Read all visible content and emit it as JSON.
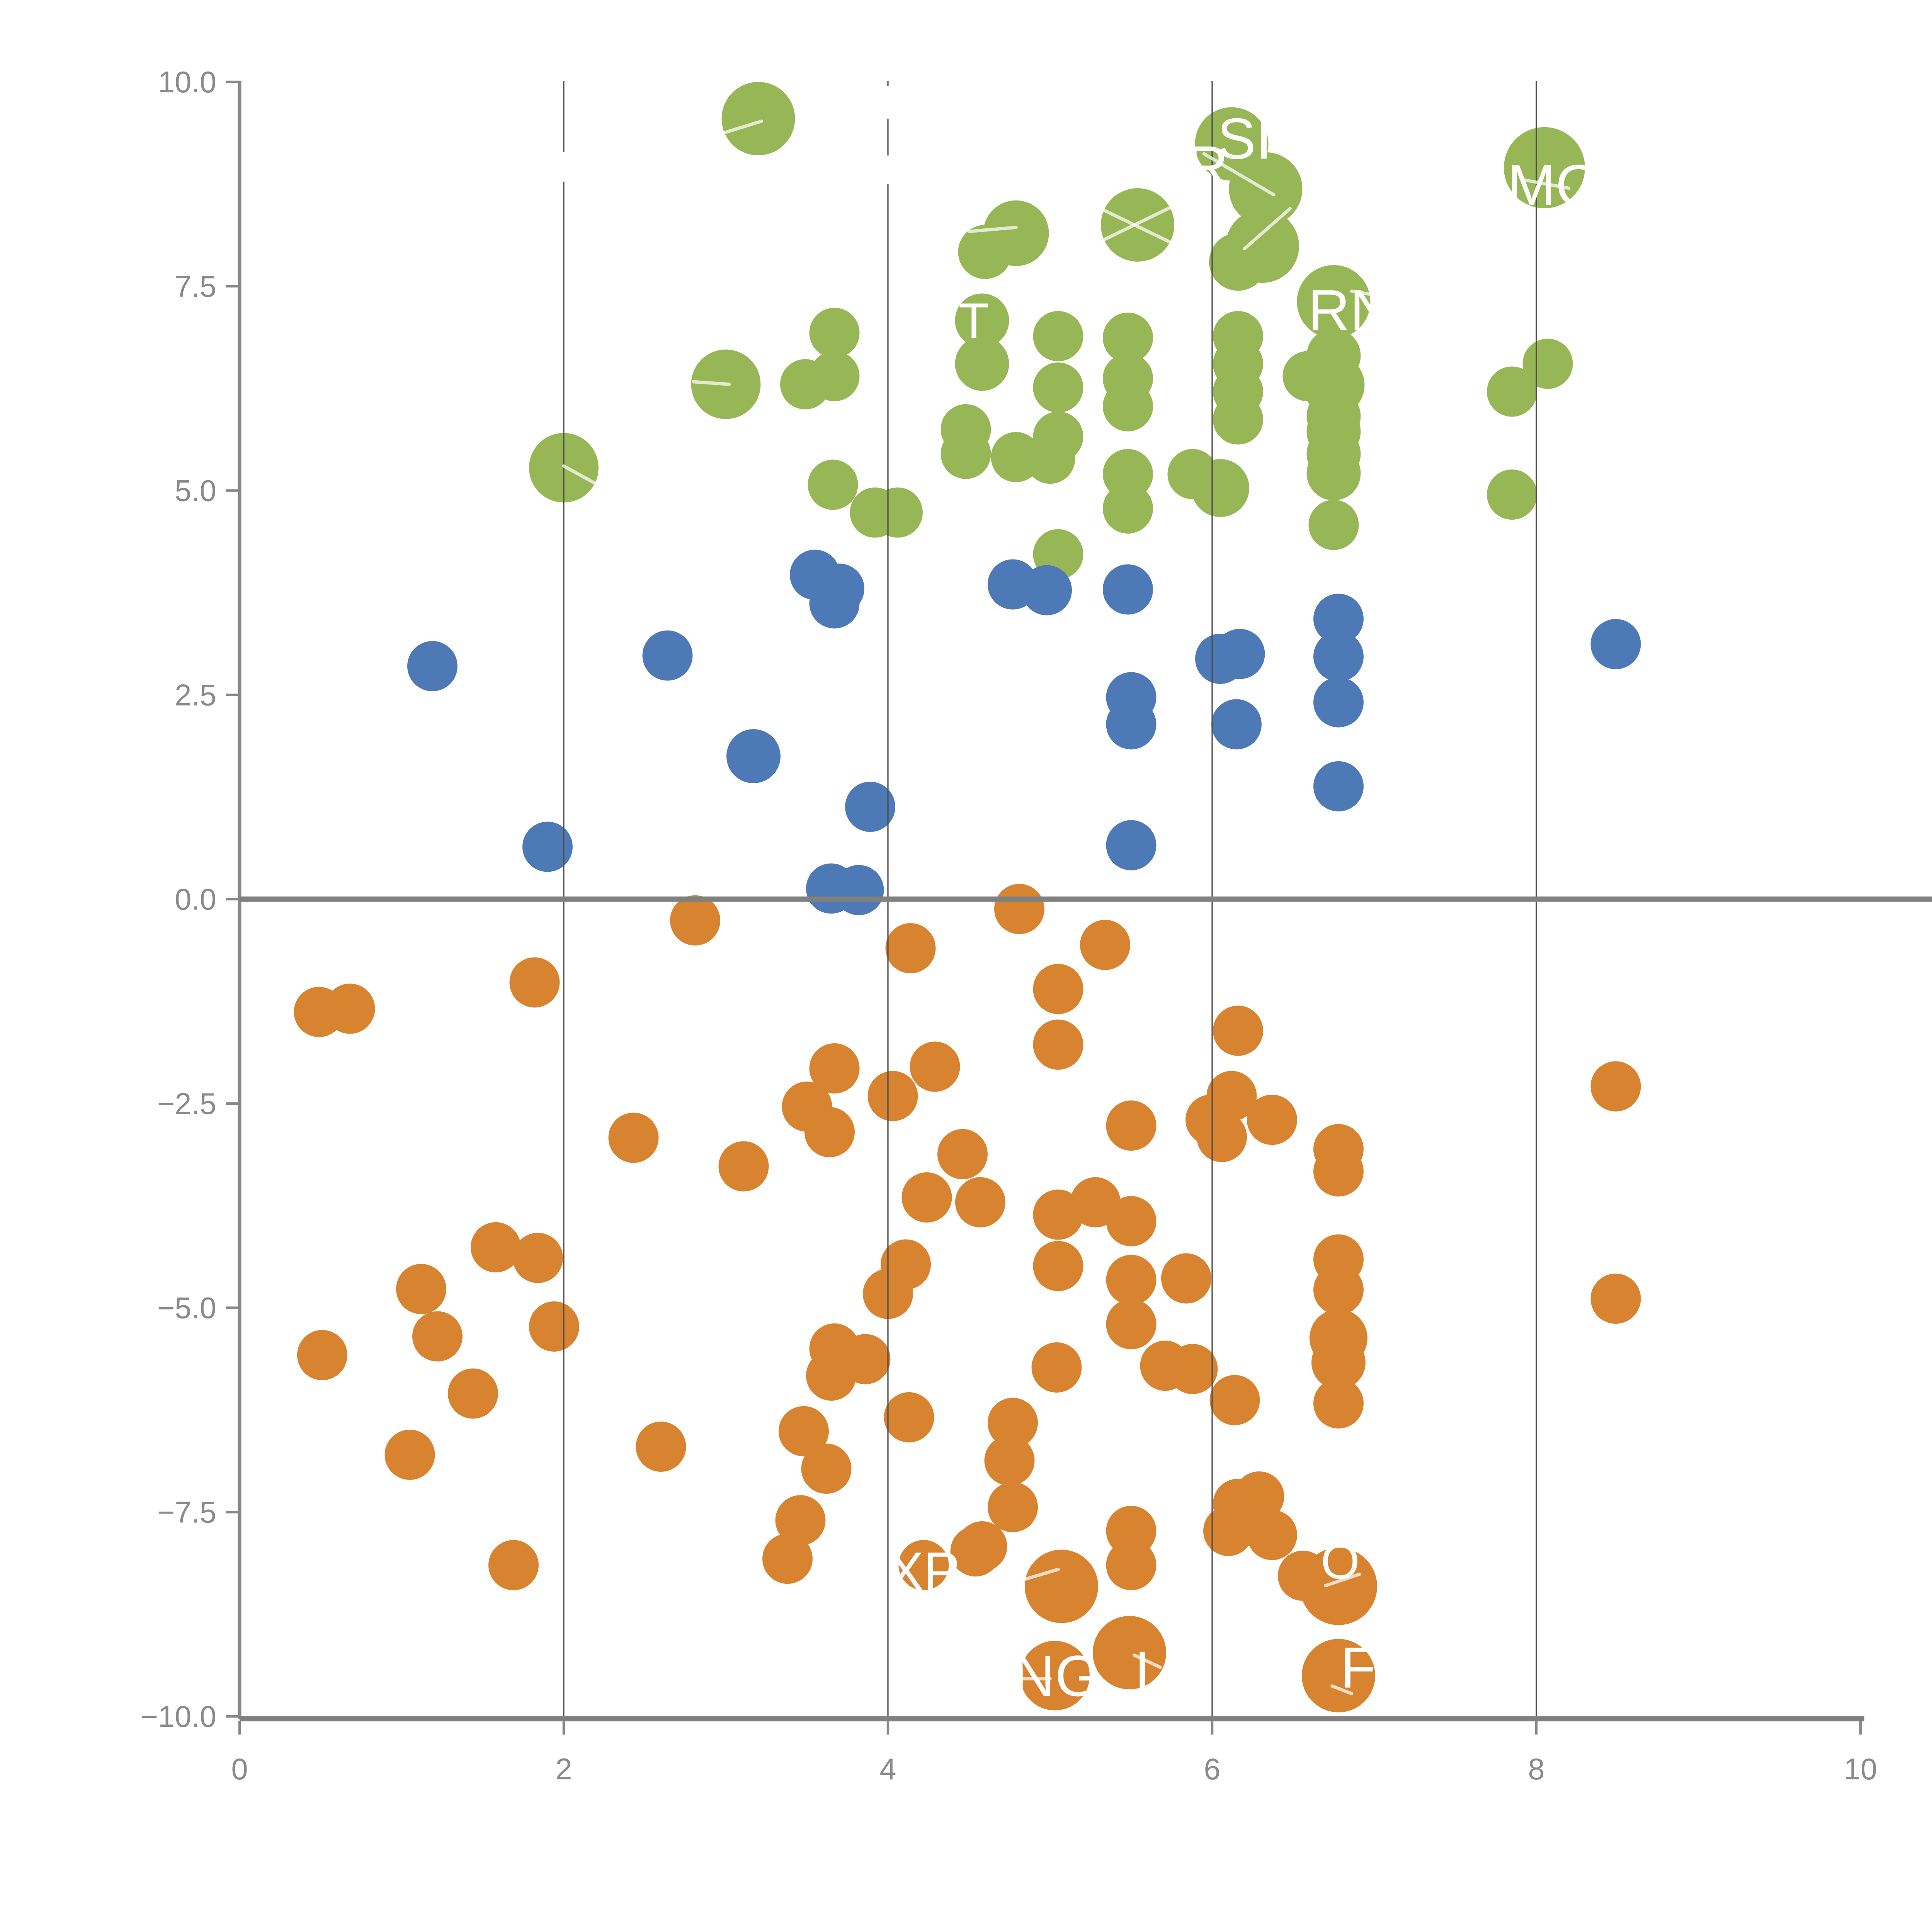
{
  "chart_data": {
    "type": "scatter",
    "title": "",
    "xlabel": "",
    "ylabel": "",
    "xlim": [
      0,
      10
    ],
    "ylim": [
      -10,
      10
    ],
    "grid": "vertical-only",
    "legend": "none",
    "x_ticks": [
      {
        "v": 0,
        "label": "0"
      },
      {
        "v": 2,
        "label": "2"
      },
      {
        "v": 4,
        "label": "4"
      },
      {
        "v": 6,
        "label": "6"
      },
      {
        "v": 8,
        "label": "8"
      },
      {
        "v": 10,
        "label": "10"
      }
    ],
    "y_ticks": [
      {
        "v": 10,
        "label": "10.0"
      },
      {
        "v": 7.5,
        "label": "7.5"
      },
      {
        "v": 5,
        "label": "5.0"
      },
      {
        "v": 2.5,
        "label": "2.5"
      },
      {
        "v": 0,
        "label": "0.0"
      },
      {
        "v": -2.5,
        "label": "−2.5"
      },
      {
        "v": -5,
        "label": "−5.0"
      },
      {
        "v": -7.5,
        "label": "−7.5"
      },
      {
        "v": -10,
        "label": "−10.0"
      }
    ],
    "gridlines_x": [
      2,
      4,
      6,
      8
    ],
    "series": [
      {
        "name": "green-cluster",
        "color": "#97B757",
        "points": [
          [
            3.2,
            9.55,
            19
          ],
          [
            2.0,
            5.28,
            18
          ],
          [
            3.0,
            6.3,
            18
          ],
          [
            4.79,
            8.15,
            17
          ],
          [
            4.6,
            7.92,
            14
          ],
          [
            5.54,
            8.25,
            19
          ],
          [
            6.12,
            9.24,
            19
          ],
          [
            6.33,
            8.69,
            19
          ],
          [
            6.31,
            7.99,
            19
          ],
          [
            6.16,
            7.8,
            15
          ],
          [
            8.05,
            8.95,
            21
          ],
          [
            6.75,
            7.31,
            19
          ],
          [
            6.75,
            6.65,
            14
          ],
          [
            6.59,
            6.4,
            13
          ],
          [
            6.75,
            6.29,
            16
          ],
          [
            6.75,
            5.91,
            14
          ],
          [
            6.75,
            5.72,
            14
          ],
          [
            6.75,
            5.45,
            14
          ],
          [
            6.75,
            5.21,
            14
          ],
          [
            6.75,
            4.58,
            13
          ],
          [
            8.07,
            6.55,
            13
          ],
          [
            7.85,
            6.21,
            13
          ],
          [
            7.85,
            4.95,
            13
          ],
          [
            3.67,
            6.93,
            13
          ],
          [
            3.49,
            6.3,
            13
          ],
          [
            3.67,
            6.4,
            13
          ],
          [
            4.58,
            7.08,
            14
          ],
          [
            4.58,
            6.55,
            14
          ],
          [
            5.05,
            6.89,
            13
          ],
          [
            5.05,
            6.26,
            13
          ],
          [
            5.05,
            5.66,
            13
          ],
          [
            5.0,
            5.39,
            13
          ],
          [
            5.48,
            6.87,
            13
          ],
          [
            5.48,
            6.37,
            13
          ],
          [
            5.48,
            6.03,
            13
          ],
          [
            6.16,
            6.89,
            13
          ],
          [
            6.16,
            6.55,
            13
          ],
          [
            6.16,
            6.21,
            13
          ],
          [
            6.16,
            5.87,
            13
          ],
          [
            4.48,
            5.75,
            13
          ],
          [
            4.48,
            5.45,
            13
          ],
          [
            4.79,
            5.41,
            13
          ],
          [
            3.66,
            5.07,
            13
          ],
          [
            3.92,
            4.73,
            13
          ],
          [
            4.06,
            4.73,
            13
          ],
          [
            5.48,
            5.2,
            13
          ],
          [
            5.48,
            4.78,
            13
          ],
          [
            5.88,
            5.2,
            13
          ],
          [
            6.05,
            5.03,
            15
          ],
          [
            5.05,
            4.22,
            13
          ]
        ]
      },
      {
        "name": "blue-cluster",
        "color": "#4D7AB7",
        "points": [
          [
            1.19,
            2.85,
            13
          ],
          [
            2.64,
            2.98,
            13
          ],
          [
            3.17,
            1.75,
            14
          ],
          [
            1.9,
            0.64,
            13
          ],
          [
            3.55,
            3.97,
            13
          ],
          [
            3.7,
            3.8,
            13
          ],
          [
            3.67,
            3.62,
            13
          ],
          [
            4.77,
            3.85,
            13
          ],
          [
            4.98,
            3.78,
            13
          ],
          [
            5.48,
            3.79,
            13
          ],
          [
            6.05,
            2.94,
            13
          ],
          [
            6.17,
            3.0,
            13
          ],
          [
            5.5,
            2.47,
            13
          ],
          [
            5.5,
            2.14,
            13
          ],
          [
            6.15,
            2.14,
            13
          ],
          [
            3.89,
            1.13,
            13
          ],
          [
            5.5,
            0.66,
            13
          ],
          [
            3.65,
            0.13,
            13
          ],
          [
            3.82,
            0.11,
            13
          ],
          [
            6.78,
            3.43,
            13
          ],
          [
            6.78,
            2.97,
            13
          ],
          [
            6.78,
            2.41,
            13
          ],
          [
            6.78,
            1.38,
            13
          ],
          [
            8.49,
            3.12,
            13
          ]
        ]
      },
      {
        "name": "orange-cluster",
        "color": "#D8832F",
        "points": [
          [
            2.81,
            -0.26,
            13
          ],
          [
            4.81,
            -0.12,
            13
          ],
          [
            1.82,
            -1.02,
            13
          ],
          [
            0.49,
            -1.38,
            13
          ],
          [
            0.68,
            -1.34,
            13
          ],
          [
            4.14,
            -0.6,
            13
          ],
          [
            5.34,
            -0.56,
            13
          ],
          [
            5.05,
            -1.1,
            13
          ],
          [
            5.05,
            -1.78,
            13
          ],
          [
            6.16,
            -1.61,
            13
          ],
          [
            8.49,
            -2.29,
            13
          ],
          [
            3.67,
            -2.07,
            13
          ],
          [
            4.29,
            -2.05,
            13
          ],
          [
            4.03,
            -2.41,
            13
          ],
          [
            3.5,
            -2.54,
            13
          ],
          [
            3.64,
            -2.85,
            13
          ],
          [
            6.12,
            -2.41,
            13
          ],
          [
            5.99,
            -2.7,
            13
          ],
          [
            6.37,
            -2.7,
            13
          ],
          [
            5.5,
            -2.77,
            13
          ],
          [
            6.06,
            -2.91,
            13
          ],
          [
            2.43,
            -2.92,
            13
          ],
          [
            3.11,
            -3.27,
            13
          ],
          [
            4.46,
            -3.12,
            13
          ],
          [
            4.24,
            -3.65,
            13
          ],
          [
            4.57,
            -3.71,
            13
          ],
          [
            5.05,
            -3.86,
            13
          ],
          [
            5.28,
            -3.71,
            13
          ],
          [
            5.5,
            -3.94,
            13
          ],
          [
            5.05,
            -4.49,
            13
          ],
          [
            5.5,
            -4.66,
            13
          ],
          [
            5.84,
            -4.64,
            13
          ],
          [
            4.11,
            -4.47,
            13
          ],
          [
            4.0,
            -4.83,
            13
          ],
          [
            1.58,
            -4.26,
            13
          ],
          [
            1.84,
            -4.39,
            13
          ],
          [
            1.12,
            -4.77,
            13
          ],
          [
            1.22,
            -5.35,
            13
          ],
          [
            0.51,
            -5.58,
            13
          ],
          [
            1.94,
            -5.23,
            13
          ],
          [
            1.44,
            -6.05,
            13
          ],
          [
            1.05,
            -6.8,
            13
          ],
          [
            2.6,
            -6.7,
            13
          ],
          [
            5.5,
            -5.2,
            13
          ],
          [
            3.67,
            -5.5,
            13
          ],
          [
            3.86,
            -5.63,
            13
          ],
          [
            3.65,
            -5.83,
            13
          ],
          [
            5.04,
            -5.73,
            13
          ],
          [
            5.71,
            -5.71,
            13
          ],
          [
            5.88,
            -5.75,
            13
          ],
          [
            4.13,
            -6.34,
            13
          ],
          [
            4.77,
            -6.41,
            13
          ],
          [
            4.75,
            -6.87,
            13
          ],
          [
            3.48,
            -6.51,
            13
          ],
          [
            3.62,
            -6.97,
            13
          ],
          [
            6.14,
            -6.13,
            13
          ],
          [
            6.16,
            -7.4,
            13
          ],
          [
            6.29,
            -7.31,
            13
          ],
          [
            6.1,
            -7.73,
            13
          ],
          [
            6.37,
            -7.78,
            13
          ],
          [
            6.56,
            -8.28,
            13
          ],
          [
            5.5,
            -7.73,
            13
          ],
          [
            5.5,
            -8.15,
            13
          ],
          [
            4.77,
            -7.44,
            13
          ],
          [
            4.58,
            -7.92,
            13
          ],
          [
            3.46,
            -7.6,
            13
          ],
          [
            3.38,
            -8.07,
            13
          ],
          [
            4.22,
            -8.15,
            13
          ],
          [
            4.54,
            -7.98,
            13
          ],
          [
            1.69,
            -8.15,
            13
          ],
          [
            6.78,
            -3.06,
            13
          ],
          [
            6.78,
            -3.33,
            13
          ],
          [
            6.78,
            -4.41,
            13
          ],
          [
            6.78,
            -4.78,
            13
          ],
          [
            6.78,
            -5.37,
            15
          ],
          [
            6.78,
            -5.67,
            14
          ],
          [
            6.78,
            -6.17,
            13
          ],
          [
            8.49,
            -4.89,
            13
          ],
          [
            5.07,
            -8.41,
            19
          ],
          [
            5.03,
            -9.5,
            18
          ],
          [
            5.49,
            -9.22,
            19
          ],
          [
            6.78,
            -8.41,
            20
          ],
          [
            6.78,
            -9.5,
            19
          ]
        ]
      }
    ],
    "label_fragments": [
      {
        "text": "SI",
        "x": 6.2,
        "y": 9.31,
        "size": 30
      },
      {
        "text": "R",
        "x": 5.97,
        "y": 8.97,
        "size": 30
      },
      {
        "text": "MO",
        "x": 8.11,
        "y": 8.74,
        "size": 30
      },
      {
        "text": "RN",
        "x": 6.85,
        "y": 7.21,
        "size": 30
      },
      {
        "text": "T",
        "x": 4.53,
        "y": 7.08,
        "size": 26
      },
      {
        "text": "XP",
        "x": 4.22,
        "y": -8.22,
        "size": 28
      },
      {
        "text": "NG",
        "x": 5.04,
        "y": -9.5,
        "size": 30
      },
      {
        "text": "I",
        "x": 5.57,
        "y": -9.45,
        "size": 30
      },
      {
        "text": "O",
        "x": 6.79,
        "y": -8.1,
        "size": 26
      },
      {
        "text": "F",
        "x": 6.9,
        "y": -9.4,
        "size": 30
      }
    ],
    "leader_lines": [
      [
        2.0,
        5.3,
        2.21,
        5.07
      ],
      [
        2.8,
        6.33,
        3.02,
        6.3
      ],
      [
        2.96,
        9.36,
        3.22,
        9.52
      ],
      [
        4.5,
        8.17,
        4.79,
        8.22
      ],
      [
        5.28,
        8.02,
        5.78,
        8.5
      ],
      [
        5.3,
        8.46,
        5.74,
        8.04
      ],
      [
        5.95,
        9.12,
        6.38,
        8.62
      ],
      [
        6.2,
        7.96,
        6.48,
        8.45
      ],
      [
        7.93,
        8.8,
        8.2,
        8.7
      ],
      [
        6.86,
        7.44,
        7.16,
        7.34
      ],
      [
        4.83,
        -9.54,
        5.0,
        -9.54
      ],
      [
        4.85,
        -8.32,
        5.05,
        -8.2
      ],
      [
        5.52,
        -9.25,
        5.68,
        -9.4
      ],
      [
        6.7,
        -8.4,
        6.91,
        -8.26
      ],
      [
        6.74,
        -9.63,
        6.86,
        -9.72
      ]
    ],
    "gridline_gaps": [
      [
        2,
        8.78,
        9.14
      ],
      [
        4,
        9.55,
        9.95
      ],
      [
        4,
        8.75,
        9.1
      ]
    ],
    "style": {
      "green": "#97B757",
      "blue": "#4D7AB7",
      "orange": "#D8832F",
      "axis_color": "#888888",
      "zero_line_color": "#808080",
      "grid_color": "#4d4d4d",
      "tick_label_color": "#8a8a8a",
      "fragment_color": "#ffffff",
      "leader_opacity": 0.72
    },
    "layout": {
      "view": 1000,
      "x0": 124.0,
      "xunit": 83.9,
      "y0": 465.4,
      "yunit": 42.3,
      "plot_top": 42.0,
      "plot_bottom": 889.6,
      "axis_right": 965.0,
      "tick_len": 7.0,
      "tick_font": 15.5,
      "x_label_baseline": 921.0,
      "grid_width": 0.65,
      "axis_width": 1.8,
      "heavy_width": 2.7,
      "leader_width": 1.7
    }
  }
}
